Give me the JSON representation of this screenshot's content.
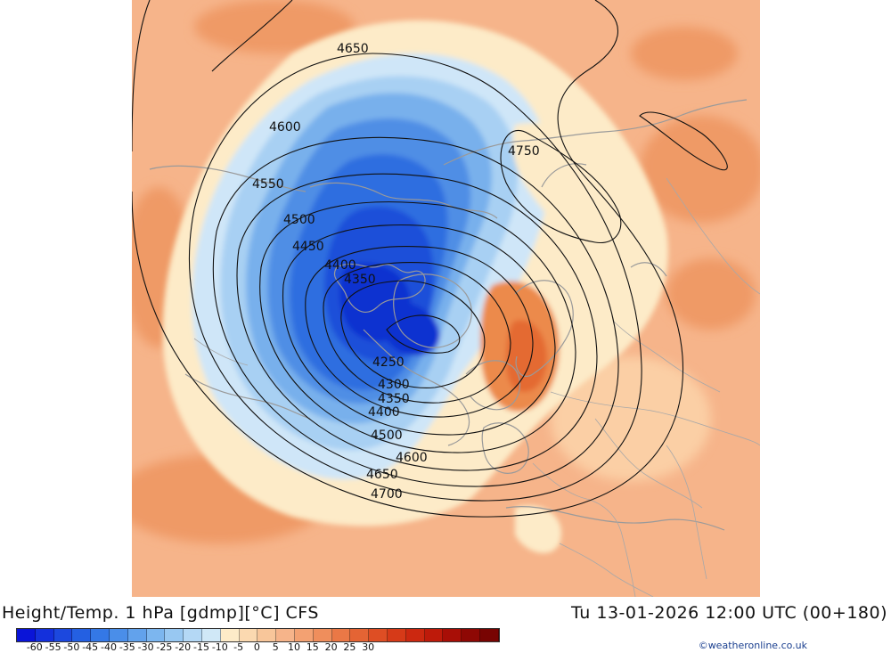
{
  "map": {
    "contour_labels": [
      "4650",
      "4600",
      "4550",
      "4500",
      "4450",
      "4400",
      "4350",
      "4250",
      "4300",
      "4350",
      "4400",
      "4500",
      "4600",
      "4650",
      "4700",
      "4750"
    ],
    "colors": {
      "background_warm": "#f6b48a",
      "warm_dark": "#ef9a66",
      "warm_light": "#fbcfa5",
      "cream": "#fdebc8",
      "blue_palest": "#cfe6f8",
      "blue_light": "#a8d0f3",
      "blue_mid": "#78b0ec",
      "blue": "#4f8ee5",
      "blue_deep": "#2f6ee0",
      "blue_deeper": "#1c4fd9",
      "blue_core": "#1133d0",
      "orange": "#ec8a4c",
      "orange_deep": "#e46a32"
    }
  },
  "footer": {
    "title": "Height/Temp. 1 hPa [gdmp][°C] CFS",
    "datetime": "Tu 13-01-2026 12:00 UTC (00+180)",
    "credit": "©weatheronline.co.uk"
  },
  "colorbar": {
    "colors": [
      "#0a14d8",
      "#1430dc",
      "#1c48de",
      "#2460e2",
      "#3478e6",
      "#4a8ee9",
      "#62a2ec",
      "#7cb6ef",
      "#98c8f2",
      "#b4d8f5",
      "#d0e8f7",
      "#fdebc8",
      "#fbd9b0",
      "#f8c69a",
      "#f6b48a",
      "#f3a172",
      "#ef8e5c",
      "#ea7846",
      "#e46434",
      "#de4e24",
      "#d63a18",
      "#cc2810",
      "#be1a0a",
      "#a80e06",
      "#8e0804",
      "#780402"
    ],
    "labels": [
      "-60",
      "-55",
      "-50",
      "-45",
      "-40",
      "-35",
      "-30",
      "-25",
      "-20",
      "-15",
      "-10",
      "-5",
      "0",
      "5",
      "10",
      "15",
      "20",
      "25",
      "30"
    ]
  }
}
